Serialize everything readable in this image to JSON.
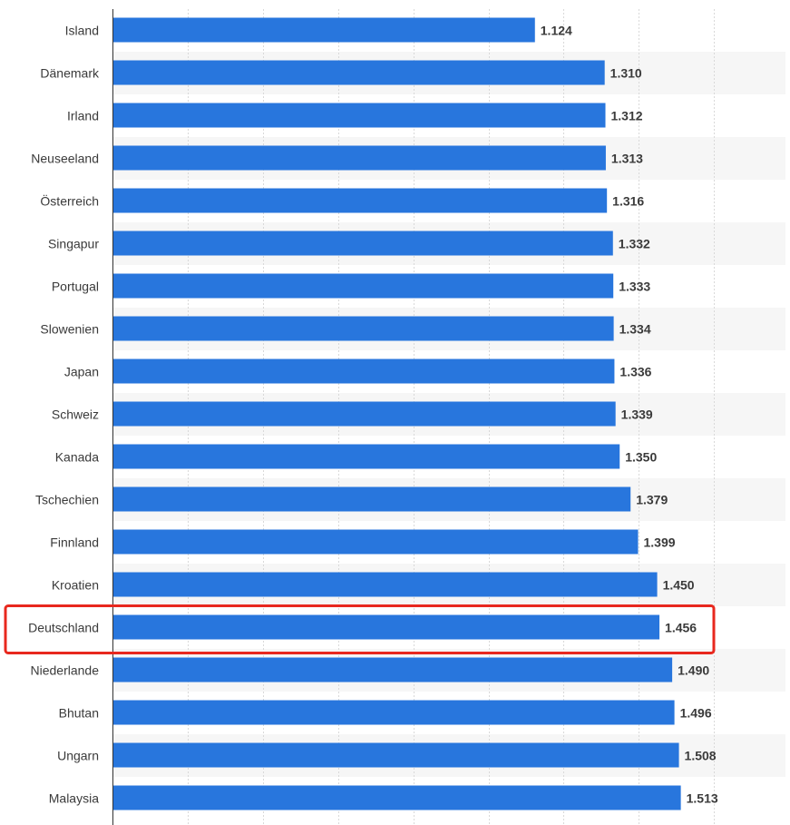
{
  "chart_data": {
    "type": "bar",
    "orientation": "horizontal",
    "categories": [
      "Island",
      "Dänemark",
      "Irland",
      "Neuseeland",
      "Österreich",
      "Singapur",
      "Portugal",
      "Slowenien",
      "Japan",
      "Schweiz",
      "Kanada",
      "Tschechien",
      "Finnland",
      "Kroatien",
      "Deutschland",
      "Niederlande",
      "Bhutan",
      "Ungarn",
      "Malaysia"
    ],
    "values": [
      1.124,
      1.31,
      1.312,
      1.313,
      1.316,
      1.332,
      1.333,
      1.334,
      1.336,
      1.339,
      1.35,
      1.379,
      1.399,
      1.45,
      1.456,
      1.49,
      1.496,
      1.508,
      1.513
    ],
    "value_labels": [
      "1.124",
      "1.310",
      "1.312",
      "1.313",
      "1.316",
      "1.332",
      "1.333",
      "1.334",
      "1.336",
      "1.339",
      "1.350",
      "1.379",
      "1.399",
      "1.450",
      "1.456",
      "1.490",
      "1.496",
      "1.508",
      "1.513"
    ],
    "highlighted_category": "Deutschland",
    "xlim": [
      0,
      1.8
    ],
    "grid": true,
    "bar_color": "#2876dd",
    "highlight_color": "#e8281e",
    "band_color": "#f6f6f6",
    "grid_color": "#d9d9d9"
  }
}
